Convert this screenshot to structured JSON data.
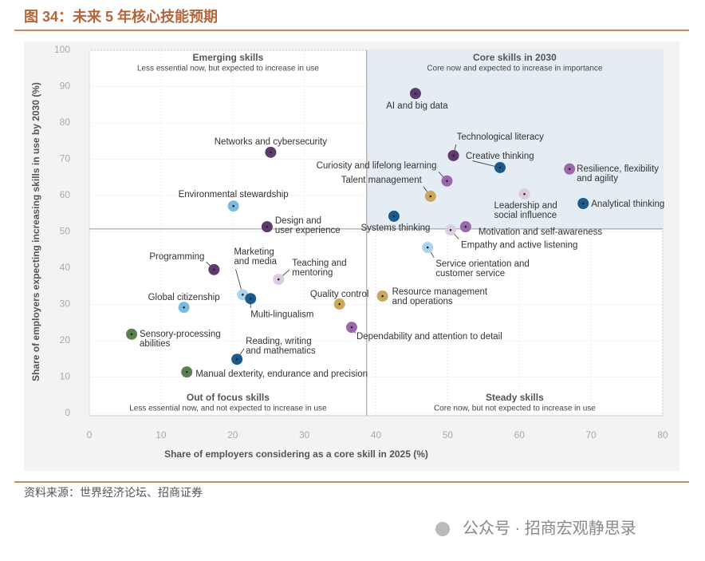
{
  "chart_data": {
    "type": "scatter",
    "title": "图 34：未来 5 年核心技能预期",
    "x_label": "Share of employers considering as a core skill in 2025 (%)",
    "y_label": "Share of employers expecting increasing skills in use by 2030 (%)",
    "xlim": [
      0,
      80
    ],
    "ylim": [
      0,
      100
    ],
    "xticks": [
      0,
      10,
      20,
      30,
      40,
      50,
      60,
      70,
      80
    ],
    "yticks": [
      0,
      10,
      20,
      30,
      40,
      50,
      60,
      70,
      80,
      90,
      100
    ],
    "grid": true,
    "quadrant_split": [
      38.7,
      50.8
    ],
    "quadrants": [
      {
        "title": "Emerging skills",
        "subtitle": "Less essential now, but expected to increase in use"
      },
      {
        "title": "Core skills in 2030",
        "subtitle": "Core now and expected to increase in importance"
      },
      {
        "title": "Out of focus skills",
        "subtitle": "Less essential now, and not expected to increase in use"
      },
      {
        "title": "Steady skills",
        "subtitle": "Core now, but not expected to increase in use"
      }
    ],
    "labels": [
      [
        "AI and big data"
      ],
      [
        "Technological literacy"
      ],
      [
        "Creative thinking"
      ],
      [
        "Resilience, flexibility",
        "and agility"
      ],
      [
        "Curiosity and lifelong learning"
      ],
      [
        "Talent management"
      ],
      [
        "Leadership and",
        "social influence"
      ],
      [
        "Analytical thinking"
      ],
      [
        "Systems thinking"
      ],
      [
        "Motivation and self-awareness"
      ],
      [
        "Empathy and active listening"
      ],
      [
        "Service orientation and",
        "customer service"
      ],
      [
        "Networks and cybersecurity"
      ],
      [
        "Environmental stewardship"
      ],
      [
        "Design and",
        "user experience"
      ],
      [
        "Programming"
      ],
      [
        "Marketing",
        "and media"
      ],
      [
        "Teaching and",
        "mentoring"
      ],
      [
        "Multi-lingualism"
      ],
      [
        "Global citizenship"
      ],
      [
        "Quality control"
      ],
      [
        "Resource management",
        "and operations"
      ],
      [
        "Dependability and attention to detail"
      ],
      [
        "Sensory-processing",
        "abilities"
      ],
      [
        "Reading, writing",
        "and mathematics"
      ],
      [
        "Manual dexterity, endurance and precision"
      ]
    ],
    "x": [
      45.5,
      50.8,
      57.3,
      67.0,
      49.9,
      47.6,
      60.7,
      68.9,
      42.5,
      52.5,
      50.4,
      47.2,
      25.3,
      20.1,
      24.8,
      17.4,
      21.4,
      26.4,
      22.5,
      13.2,
      34.9,
      40.9,
      36.6,
      5.9,
      20.6,
      13.6
    ],
    "y": [
      88.1,
      71.0,
      67.7,
      67.3,
      64.0,
      59.8,
      60.4,
      57.8,
      54.3,
      51.4,
      50.5,
      45.7,
      71.9,
      57.1,
      51.4,
      39.6,
      32.7,
      36.9,
      31.6,
      29.2,
      30.1,
      32.3,
      23.7,
      21.8,
      14.9,
      11.4
    ],
    "colors": [
      "#5e3a6e",
      "#5e3a6e",
      "#1b5a8a",
      "#9a68ad",
      "#9a68ad",
      "#c9a85c",
      "#dccbe2",
      "#1b5a8a",
      "#1b5a8a",
      "#9a68ad",
      "#dccbe2",
      "#a9d3ee",
      "#5e3a6e",
      "#7cb9e0",
      "#5e3a6e",
      "#5e3a6e",
      "#a9d3ee",
      "#dccbe2",
      "#1b5a8a",
      "#7cb9e0",
      "#c9a85c",
      "#c9a85c",
      "#9a68ad",
      "#5c7f4e",
      "#1b5a8a",
      "#5c7f4e"
    ]
  },
  "source": "资料来源：世界经济论坛、招商证券",
  "watermark": "公众号 · 招商宏观静思录"
}
